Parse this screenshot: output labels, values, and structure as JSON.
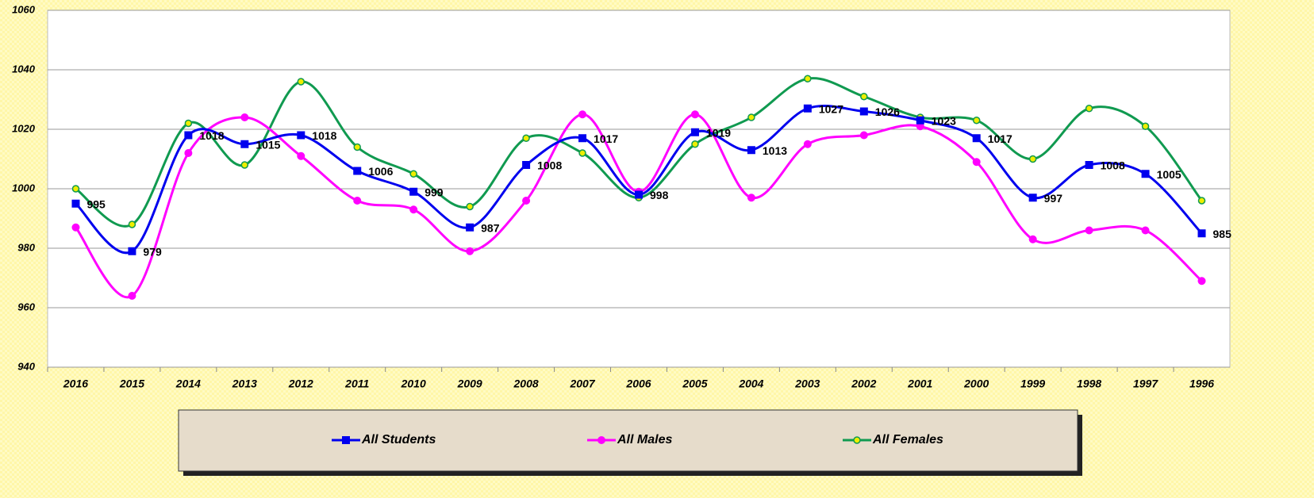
{
  "chart_data": {
    "type": "line",
    "categories": [
      "2016",
      "2015",
      "2014",
      "2013",
      "2012",
      "2011",
      "2010",
      "2009",
      "2008",
      "2007",
      "2006",
      "2005",
      "2004",
      "2003",
      "2002",
      "2001",
      "2000",
      "1999",
      "1998",
      "1997",
      "1996"
    ],
    "series": [
      {
        "name": "All Students",
        "color": "#0000ee",
        "marker": "square",
        "values": [
          995,
          979,
          1018,
          1015,
          1018,
          1006,
          999,
          987,
          1008,
          1017,
          998,
          1019,
          1013,
          1027,
          1026,
          1023,
          1017,
          997,
          1008,
          1005,
          985
        ],
        "data_labels": true
      },
      {
        "name": "All Males",
        "color": "#ff00ff",
        "marker": "circle",
        "values": [
          987,
          964,
          1012,
          1024,
          1011,
          996,
          993,
          979,
          996,
          1025,
          999,
          1025,
          997,
          1015,
          1018,
          1021,
          1009,
          983,
          986,
          986,
          969
        ],
        "data_labels": false
      },
      {
        "name": "All Females",
        "color": "#109a50",
        "marker": "dot",
        "values": [
          1000,
          988,
          1022,
          1008,
          1036,
          1014,
          1005,
          994,
          1017,
          1012,
          997,
          1015,
          1024,
          1037,
          1031,
          1024,
          1023,
          1010,
          1027,
          1021,
          996
        ],
        "data_labels": false
      }
    ],
    "ylim": [
      940,
      1060
    ],
    "yticks": [
      940,
      960,
      980,
      1000,
      1020,
      1040,
      1060
    ],
    "grid": true,
    "smooth": true,
    "legend": "bottom"
  }
}
